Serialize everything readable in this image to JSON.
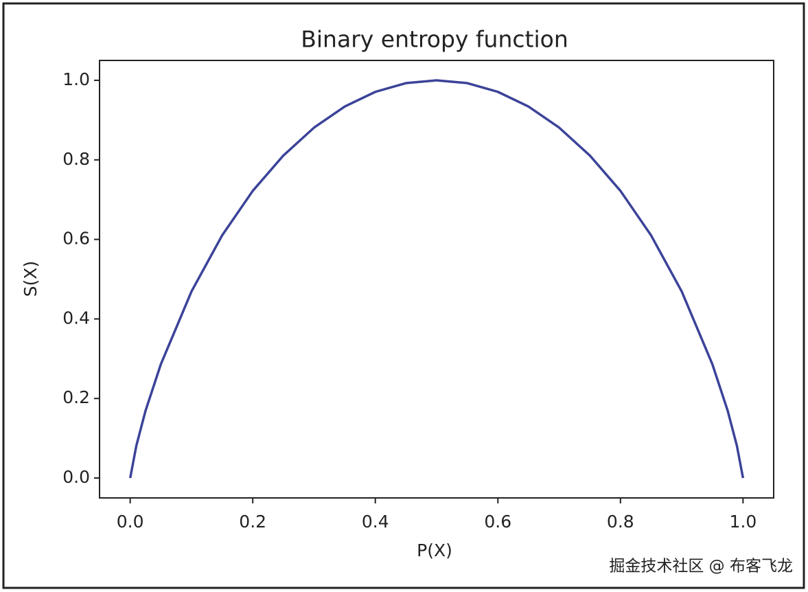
{
  "chart_data": {
    "type": "line",
    "title": "Binary entropy function",
    "x_label": "P(X)",
    "y_label": "S(X)",
    "x": [
      0,
      0.01,
      0.025,
      0.05,
      0.1,
      0.15,
      0.2,
      0.25,
      0.3,
      0.35,
      0.4,
      0.45,
      0.5,
      0.55,
      0.6,
      0.65,
      0.7,
      0.75,
      0.8,
      0.85,
      0.9,
      0.95,
      0.975,
      0.99,
      1
    ],
    "values": [
      0,
      0.081,
      0.169,
      0.286,
      0.469,
      0.61,
      0.722,
      0.811,
      0.881,
      0.934,
      0.971,
      0.993,
      1,
      0.993,
      0.971,
      0.934,
      0.881,
      0.811,
      0.722,
      0.61,
      0.469,
      0.286,
      0.169,
      0.081,
      0
    ],
    "color": "#3b4399",
    "xlim": [
      -0.05,
      1.05
    ],
    "ylim": [
      -0.05,
      1.05
    ],
    "xticks": [
      {
        "value": 0,
        "label": "0.0"
      },
      0.2,
      0.4,
      0.6,
      0.8,
      {
        "value": 1,
        "label": "1.0"
      }
    ],
    "yticks": [
      {
        "value": 0,
        "label": "0.0"
      },
      0.2,
      0.4,
      0.6,
      0.8,
      {
        "value": 1,
        "label": "1.0"
      }
    ],
    "grid": false
  },
  "watermark": "掘金技术社区 @ 布客飞龙"
}
